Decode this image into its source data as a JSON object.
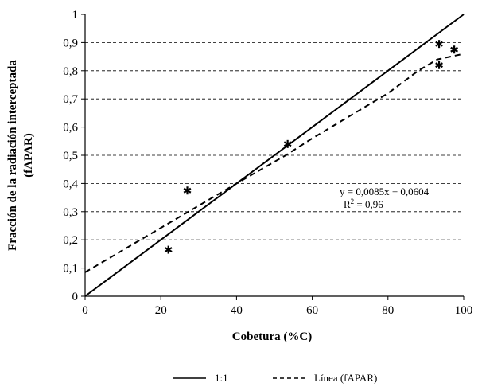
{
  "chart_data": {
    "type": "scatter",
    "title": "",
    "xlabel": "Cobetura (%C)",
    "ylabel_line1": "Fracción de la radiación interceptada",
    "ylabel_line2": "(fAPAR)",
    "xlim": [
      0,
      100
    ],
    "ylim": [
      0,
      1
    ],
    "x_ticks": [
      "0",
      "20",
      "40",
      "60",
      "80",
      "100"
    ],
    "y_ticks": [
      "0",
      "0,1",
      "0,2",
      "0,3",
      "0,4",
      "0,5",
      "0,6",
      "0,7",
      "0,8",
      "0,9",
      "1"
    ],
    "grid": "horizontal dashed",
    "series": [
      {
        "marker": "asterisk",
        "x": [
          22,
          27,
          53.5,
          93.5,
          93.5,
          97.5
        ],
        "y": [
          0.165,
          0.375,
          0.54,
          0.895,
          0.82,
          0.875
        ]
      }
    ],
    "reference_line": {
      "label": "1:1",
      "x": [
        0,
        100
      ],
      "y": [
        0,
        1
      ]
    },
    "trend_line": {
      "label": "Línea (fAPAR)",
      "x": [
        0,
        40,
        53,
        60,
        70,
        80,
        88,
        93,
        100
      ],
      "y": [
        0.085,
        0.4,
        0.5,
        0.56,
        0.64,
        0.72,
        0.8,
        0.84,
        0.86
      ]
    },
    "equation": "y = 0,0085x + 0,0604",
    "r2_prefix": "R",
    "r2_exp": "2",
    "r2_value": " = 0,96",
    "legend": {
      "position": "bottom",
      "entries": [
        "1:1",
        "Línea (fAPAR)"
      ]
    }
  }
}
